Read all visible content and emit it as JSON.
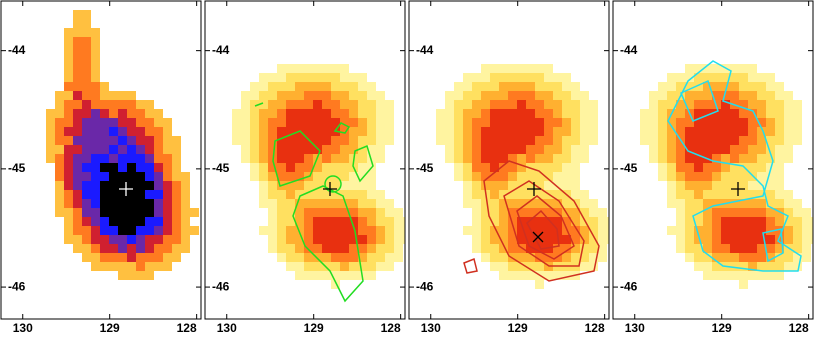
{
  "chart_data": [
    {
      "type": "image",
      "xlim": [
        130.25,
        127.95
      ],
      "ylim": [
        -46.27,
        -43.58
      ],
      "xticks": [
        130,
        129,
        128
      ],
      "yticks": [
        -44,
        -45,
        -46
      ]
    },
    {
      "type": "image",
      "xlim": [
        130.25,
        127.95
      ],
      "ylim": [
        -46.27,
        -43.58
      ],
      "xticks": [
        130,
        129,
        128
      ],
      "yticks": [
        -44,
        -45,
        -46
      ]
    },
    {
      "type": "image",
      "xlim": [
        130.25,
        127.95
      ],
      "ylim": [
        -46.27,
        -43.58
      ],
      "xticks": [
        130,
        129,
        128
      ],
      "yticks": [
        -44,
        -45,
        -46
      ]
    },
    {
      "type": "image",
      "xlim": [
        130.25,
        127.95
      ],
      "ylim": [
        -46.27,
        -43.58
      ],
      "xticks": [
        130,
        129,
        128
      ],
      "yticks": [
        -44,
        -45,
        -46
      ]
    }
  ]
}
